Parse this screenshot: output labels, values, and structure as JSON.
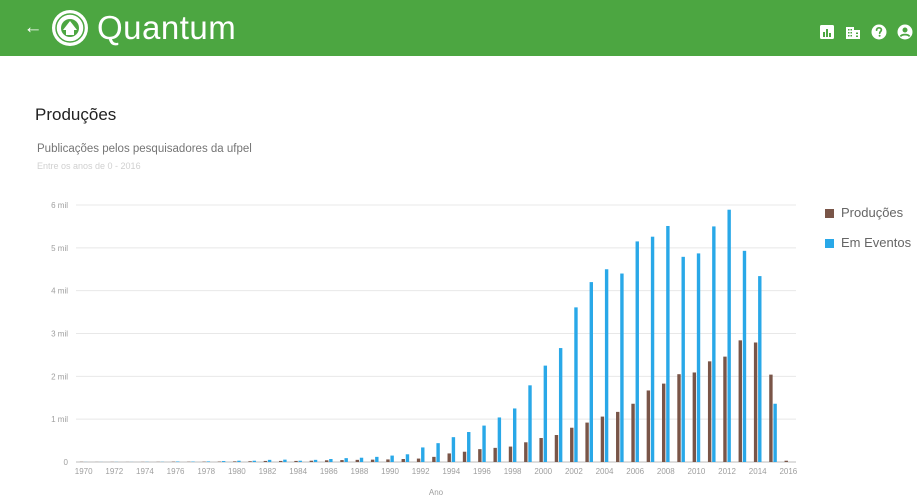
{
  "header": {
    "app_title": "Quantum",
    "back_icon": "arrow-left-icon",
    "logo_icon": "university-seal-icon",
    "actions": [
      {
        "name": "bar-chart-icon"
      },
      {
        "name": "building-icon"
      },
      {
        "name": "help-icon"
      },
      {
        "name": "account-circle-icon"
      }
    ],
    "colors": {
      "bar": "#4ca641",
      "text": "#ffffff"
    }
  },
  "page": {
    "title": "Produções"
  },
  "chart_data": {
    "type": "bar",
    "title": "Publicações pelos pesquisadores da ufpel",
    "subtitle": "Entre os anos de 0 - 2016",
    "xlabel": "Ano",
    "ylabel": "",
    "ylim": [
      0,
      6000
    ],
    "y_ticks": [
      {
        "value": 0,
        "label": "0"
      },
      {
        "value": 1000,
        "label": "1 mil"
      },
      {
        "value": 2000,
        "label": "2 mil"
      },
      {
        "value": 3000,
        "label": "3 mil"
      },
      {
        "value": 4000,
        "label": "4 mil"
      },
      {
        "value": 5000,
        "label": "5 mil"
      },
      {
        "value": 6000,
        "label": "6 mil"
      }
    ],
    "x_tick_labels": [
      "1970",
      "1972",
      "1974",
      "1976",
      "1978",
      "1980",
      "1982",
      "1984",
      "1986",
      "1988",
      "1990",
      "1992",
      "1994",
      "1996",
      "1998",
      "2000",
      "2002",
      "2004",
      "2006",
      "2008",
      "2010",
      "2012",
      "2014",
      "2016"
    ],
    "grid": true,
    "legend_position": "right",
    "categories": [
      "1970",
      "1971",
      "1972",
      "1973",
      "1974",
      "1975",
      "1976",
      "1977",
      "1978",
      "1979",
      "1980",
      "1981",
      "1982",
      "1983",
      "1984",
      "1985",
      "1986",
      "1987",
      "1988",
      "1989",
      "1990",
      "1991",
      "1992",
      "1993",
      "1994",
      "1995",
      "1996",
      "1997",
      "1998",
      "1999",
      "2000",
      "2001",
      "2002",
      "2003",
      "2004",
      "2005",
      "2006",
      "2007",
      "2008",
      "2009",
      "2010",
      "2011",
      "2012",
      "2013",
      "2014",
      "2015",
      "2016"
    ],
    "series": [
      {
        "name": "Produções",
        "color": "#795548",
        "values": [
          5,
          2,
          3,
          2,
          3,
          4,
          8,
          6,
          8,
          10,
          15,
          18,
          25,
          25,
          25,
          30,
          40,
          45,
          50,
          55,
          60,
          70,
          80,
          120,
          200,
          240,
          300,
          330,
          360,
          460,
          560,
          630,
          800,
          920,
          1060,
          1170,
          1360,
          1670,
          1830,
          2050,
          2090,
          2350,
          2460,
          2840,
          2790,
          2040,
          30
        ]
      },
      {
        "name": "Em Eventos",
        "color": "#29a8e8",
        "values": [
          2,
          2,
          3,
          2,
          4,
          5,
          12,
          10,
          14,
          22,
          30,
          30,
          50,
          55,
          30,
          50,
          70,
          90,
          100,
          120,
          150,
          180,
          340,
          440,
          580,
          700,
          850,
          1040,
          1250,
          1790,
          2250,
          2660,
          3610,
          4200,
          4500,
          4400,
          5150,
          5260,
          5510,
          4790,
          4870,
          5500,
          5890,
          4930,
          4340,
          1360,
          0
        ]
      }
    ]
  }
}
